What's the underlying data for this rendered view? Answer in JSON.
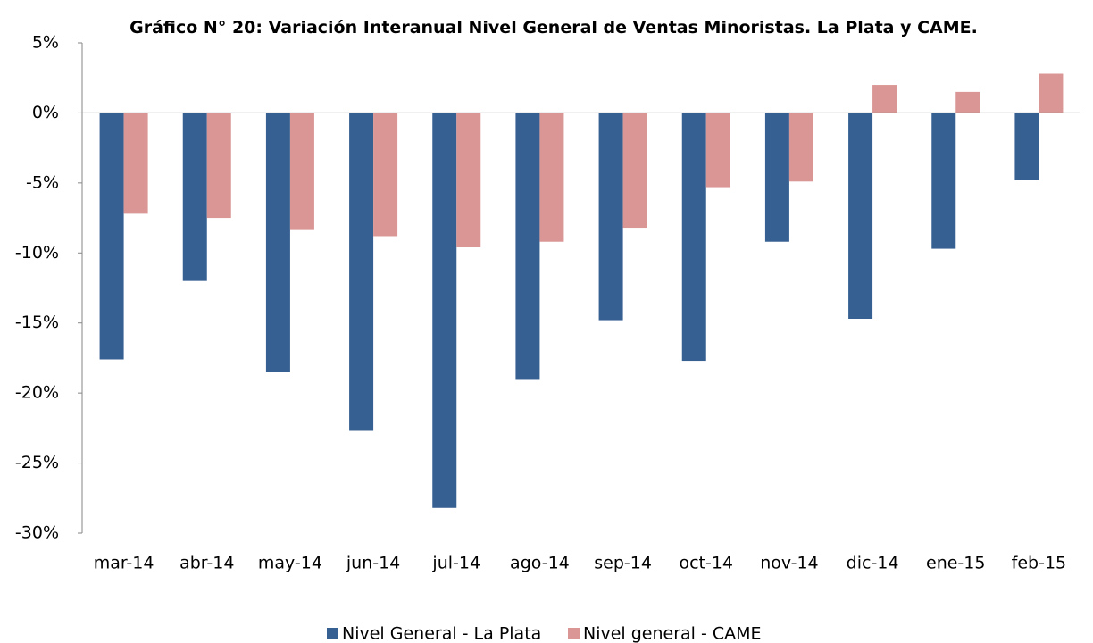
{
  "chart_data": {
    "type": "bar",
    "title": "Gráfico N° 20: Variación Interanual Nivel General de Ventas Minoristas. La Plata y CAME.",
    "categories": [
      "mar-14",
      "abr-14",
      "may-14",
      "jun-14",
      "jul-14",
      "ago-14",
      "sep-14",
      "oct-14",
      "nov-14",
      "dic-14",
      "ene-15",
      "feb-15"
    ],
    "series": [
      {
        "name": "Nivel General - La Plata",
        "color": "#376092",
        "values": [
          -17.6,
          -12.0,
          -18.5,
          -22.7,
          -28.2,
          -19.0,
          -14.8,
          -17.7,
          -9.2,
          -14.7,
          -9.7,
          -4.8
        ]
      },
      {
        "name": "Nivel general - CAME",
        "color": "#d99694",
        "values": [
          -7.2,
          -7.5,
          -8.3,
          -8.8,
          -9.6,
          -9.2,
          -8.2,
          -5.3,
          -4.9,
          2.0,
          1.5,
          2.8
        ]
      }
    ],
    "ylim": [
      -30,
      5
    ],
    "yticks": [
      {
        "value": 5,
        "label": "5%"
      },
      {
        "value": 0,
        "label": "0%"
      },
      {
        "value": -5,
        "label": "-5%"
      },
      {
        "value": -10,
        "label": "-10%"
      },
      {
        "value": -15,
        "label": "-15%"
      },
      {
        "value": -20,
        "label": "-20%"
      },
      {
        "value": -25,
        "label": "-25%"
      },
      {
        "value": -30,
        "label": "-30%"
      }
    ],
    "legend": "bottom"
  }
}
